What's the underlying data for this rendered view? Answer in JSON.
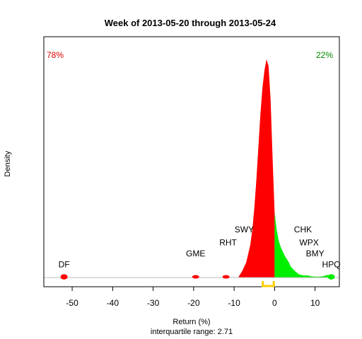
{
  "chart_data": {
    "type": "area",
    "title": "Week of 2013-05-20 through 2013-05-24",
    "xlabel": "Return (%)",
    "ylabel": "Density",
    "subtitle": "interquartile range: 2.71",
    "xlim": [
      -57,
      16
    ],
    "ylim": [
      0,
      1
    ],
    "x_ticks": [
      -50,
      -40,
      -30,
      -20,
      -10,
      0,
      10
    ],
    "grid": false,
    "pct_negative": "78%",
    "pct_positive": "22%",
    "colors": {
      "negative": "#ff0000",
      "positive": "#00ee00",
      "negative_label": "#dd0000",
      "positive_label": "#008800",
      "iqr": "#ffcc00",
      "baseline": "#bbbbbb"
    },
    "density": {
      "x": [
        -9,
        -8,
        -7,
        -6,
        -5.5,
        -5,
        -4.5,
        -4,
        -3.5,
        -3,
        -2.5,
        -2,
        -1.5,
        -1,
        -0.5,
        0,
        0.5,
        1,
        1.5,
        2,
        2.5,
        3,
        3.5,
        4,
        5,
        6,
        7,
        8,
        9,
        10,
        11,
        12,
        13,
        14,
        15
      ],
      "y": [
        0.0,
        0.03,
        0.07,
        0.15,
        0.22,
        0.32,
        0.45,
        0.6,
        0.75,
        0.87,
        0.95,
        1.0,
        0.97,
        0.82,
        0.55,
        0.3,
        0.22,
        0.17,
        0.14,
        0.12,
        0.1,
        0.085,
        0.07,
        0.05,
        0.03,
        0.015,
        0.01,
        0.01,
        0.006,
        0.004,
        0.004,
        0.006,
        0.012,
        0.008,
        0.0
      ]
    },
    "bumps": [
      {
        "x": -52,
        "y": 0.012
      },
      {
        "x": -19.5,
        "y": 0.008
      },
      {
        "x": -12,
        "y": 0.008
      },
      {
        "x": 14,
        "y": 0.012
      }
    ],
    "iqr": [
      -2.9,
      -0.2
    ],
    "annotations": [
      {
        "label": "DF",
        "x": -52,
        "y": 0.06
      },
      {
        "label": "GME",
        "x": -19.5,
        "y": 0.11
      },
      {
        "label": "RHT",
        "x": -11.5,
        "y": 0.16
      },
      {
        "label": "SWY",
        "x": -7.5,
        "y": 0.22
      },
      {
        "label": "CHK",
        "x": 7,
        "y": 0.22
      },
      {
        "label": "WPX",
        "x": 8.5,
        "y": 0.16
      },
      {
        "label": "BMY",
        "x": 10,
        "y": 0.11
      },
      {
        "label": "HPQ",
        "x": 14,
        "y": 0.06
      }
    ]
  }
}
